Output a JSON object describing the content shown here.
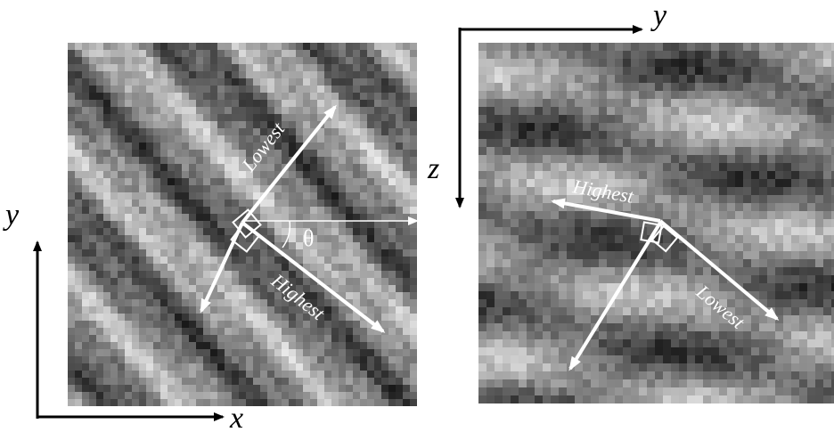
{
  "left_panel": {
    "axis_x_label": "x",
    "axis_y_label": "y",
    "angle_label": "θ",
    "lowest_label": "Lowest",
    "highest_label": "Highest"
  },
  "right_panel": {
    "axis_y_label": "y",
    "axis_z_label": "z",
    "highest_label": "Highest",
    "lowest_label": "Lowest"
  },
  "colors": {
    "arrow_black": "#000000",
    "arrow_white": "#ffffff"
  }
}
